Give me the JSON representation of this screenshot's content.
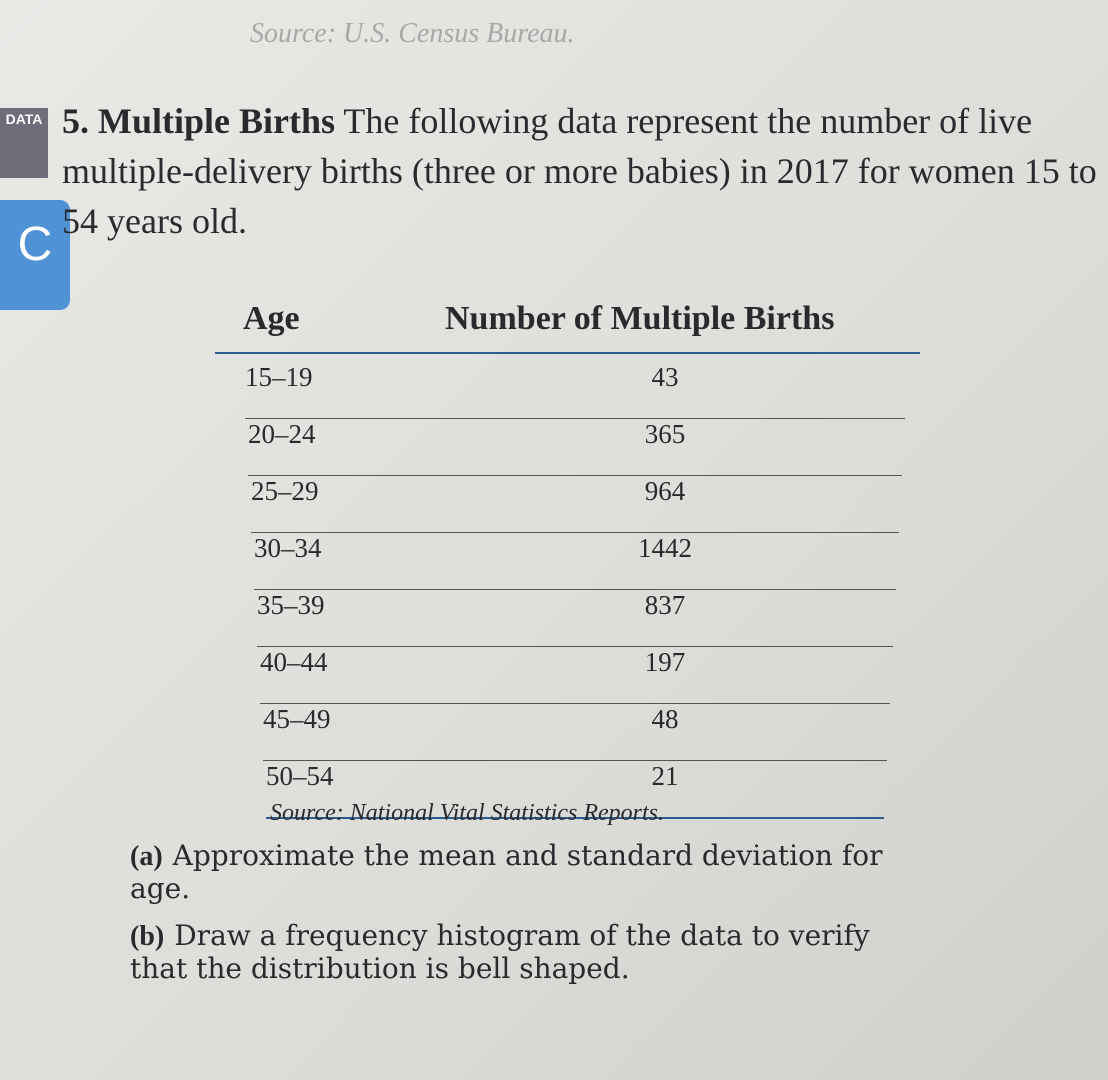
{
  "top_source": "Source: U.S. Census Bureau.",
  "icons": {
    "data": "DATA",
    "c": "C"
  },
  "problem": {
    "number": "5.",
    "title": "Multiple Births",
    "text": "The following data represent the number of live multiple-delivery births (three or more babies) in 2017 for women 15 to 54 years old."
  },
  "table": {
    "headers": [
      "Age",
      "Number of Multiple Births"
    ],
    "rows": [
      [
        "15–19",
        "43"
      ],
      [
        "20–24",
        "365"
      ],
      [
        "25–29",
        "964"
      ],
      [
        "30–34",
        "1442"
      ],
      [
        "35–39",
        "837"
      ],
      [
        "40–44",
        "197"
      ],
      [
        "45–49",
        "48"
      ],
      [
        "50–54",
        "21"
      ]
    ],
    "source": "Source: National Vital Statistics Reports."
  },
  "parts": [
    {
      "label": "(a)",
      "text": "Approximate the mean and standard deviation for age."
    },
    {
      "label": "(b)",
      "text": "Draw a frequency histogram of the data to verify that the distribution is bell shaped."
    }
  ]
}
